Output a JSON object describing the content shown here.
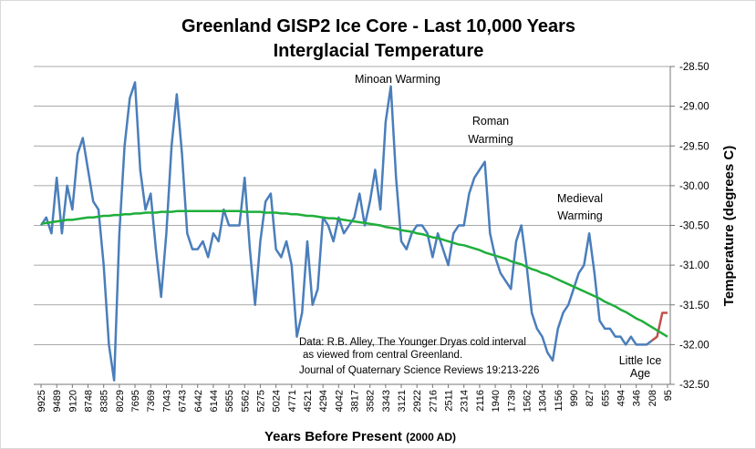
{
  "chart_data": {
    "type": "line",
    "title": [
      "Greenland GISP2 Ice Core - Last 10,000 Years",
      "Interglacial Temperature"
    ],
    "x_label": "Years Before Present",
    "x_label_note": "(2000 AD)",
    "y_label": "Temperature (degrees C)",
    "annotations": [
      [
        "Minoan Warming"
      ],
      [
        "Roman",
        "Warming"
      ],
      [
        "Medieval",
        "Warming"
      ],
      [
        "Little Ice",
        "Age"
      ],
      [
        "Data: R.B. Alley,  The Younger Dryas cold interval",
        "as viewed from central Greenland.",
        "Journal of Quaternary  Science Reviews 19:213-226"
      ]
    ],
    "categories": [
      "9925",
      null,
      null,
      "9489",
      null,
      null,
      "9120",
      null,
      null,
      "8748",
      null,
      null,
      "8385",
      null,
      null,
      "8029",
      null,
      null,
      "7695",
      null,
      null,
      "7369",
      null,
      null,
      "7043",
      null,
      null,
      "6743",
      null,
      null,
      "6442",
      null,
      null,
      "6144",
      null,
      null,
      "5855",
      null,
      null,
      "5562",
      null,
      null,
      "5275",
      null,
      null,
      "5024",
      null,
      null,
      "4771",
      null,
      null,
      "4521",
      null,
      null,
      "4294",
      null,
      null,
      "4042",
      null,
      null,
      "3817",
      null,
      null,
      "3582",
      null,
      null,
      "3343",
      null,
      null,
      "3121",
      null,
      null,
      "2922",
      null,
      null,
      "2716",
      null,
      null,
      "2511",
      null,
      null,
      "2314",
      null,
      null,
      "2116",
      null,
      null,
      "1940",
      null,
      null,
      "1739",
      null,
      null,
      "1562",
      null,
      null,
      "1304",
      null,
      null,
      "1156",
      null,
      null,
      "990",
      null,
      null,
      "827",
      null,
      null,
      "655",
      null,
      null,
      "494",
      null,
      null,
      "346",
      null,
      null,
      "208",
      null,
      null,
      "95"
    ],
    "series": [
      {
        "color": "#4a7ebb",
        "values": [
          -30.5,
          -30.4,
          -30.6,
          -29.9,
          -30.6,
          -30.0,
          -30.3,
          -29.6,
          -29.4,
          -29.8,
          -30.2,
          -30.3,
          -31.0,
          -32.0,
          -32.45,
          -30.6,
          -29.5,
          -28.9,
          -28.7,
          -29.8,
          -30.3,
          -30.1,
          -30.8,
          -31.4,
          -30.6,
          -29.5,
          -28.85,
          -29.6,
          -30.6,
          -30.8,
          -30.8,
          -30.7,
          -30.9,
          -30.6,
          -30.7,
          -30.3,
          -30.5,
          -30.5,
          -30.5,
          -29.9,
          -30.8,
          -31.5,
          -30.7,
          -30.2,
          -30.1,
          -30.8,
          -30.9,
          -30.7,
          -31.0,
          -31.9,
          -31.6,
          -30.7,
          -31.5,
          -31.3,
          -30.4,
          -30.5,
          -30.7,
          -30.4,
          -30.6,
          -30.5,
          -30.4,
          -30.1,
          -30.5,
          -30.2,
          -29.8,
          -30.3,
          -29.2,
          -28.75,
          -29.9,
          -30.7,
          -30.8,
          -30.6,
          -30.5,
          -30.5,
          -30.6,
          -30.9,
          -30.6,
          -30.8,
          -31.0,
          -30.6,
          -30.5,
          -30.5,
          -30.1,
          -29.9,
          -29.8,
          -29.7,
          -30.6,
          -30.9,
          -31.1,
          -31.2,
          -31.3,
          -30.7,
          -30.5,
          -31.0,
          -31.6,
          -31.8,
          -31.9,
          -32.1,
          -32.2,
          -31.8,
          -31.6,
          -31.5,
          -31.3,
          -31.1,
          -31.0,
          -30.6,
          -31.1,
          -31.7,
          -31.8,
          -31.8,
          -31.9,
          -31.9,
          -32.0,
          -31.9,
          -32.0,
          -32.0,
          -32.0,
          -31.95,
          null,
          null,
          null
        ]
      },
      {
        "color": "#c0504d",
        "values": [
          null,
          null,
          null,
          null,
          null,
          null,
          null,
          null,
          null,
          null,
          null,
          null,
          null,
          null,
          null,
          null,
          null,
          null,
          null,
          null,
          null,
          null,
          null,
          null,
          null,
          null,
          null,
          null,
          null,
          null,
          null,
          null,
          null,
          null,
          null,
          null,
          null,
          null,
          null,
          null,
          null,
          null,
          null,
          null,
          null,
          null,
          null,
          null,
          null,
          null,
          null,
          null,
          null,
          null,
          null,
          null,
          null,
          null,
          null,
          null,
          null,
          null,
          null,
          null,
          null,
          null,
          null,
          null,
          null,
          null,
          null,
          null,
          null,
          null,
          null,
          null,
          null,
          null,
          null,
          null,
          null,
          null,
          null,
          null,
          null,
          null,
          null,
          null,
          null,
          null,
          null,
          null,
          null,
          null,
          null,
          null,
          null,
          null,
          null,
          null,
          null,
          null,
          null,
          null,
          null,
          null,
          null,
          null,
          null,
          null,
          null,
          null,
          null,
          null,
          null,
          null,
          null,
          -31.95,
          -31.9,
          -31.6,
          -31.6
        ]
      },
      {
        "color": "#1fae3b",
        "values": [
          -30.48,
          -30.47,
          -30.46,
          -30.45,
          -30.44,
          -30.43,
          -30.43,
          -30.42,
          -30.41,
          -30.4,
          -30.4,
          -30.39,
          -30.38,
          -30.38,
          -30.37,
          -30.37,
          -30.36,
          -30.36,
          -30.35,
          -30.35,
          -30.34,
          -30.34,
          -30.34,
          -30.33,
          -30.33,
          -30.33,
          -30.32,
          -30.32,
          -30.32,
          -30.32,
          -30.32,
          -30.32,
          -30.32,
          -30.32,
          -30.32,
          -30.32,
          -30.32,
          -30.32,
          -30.32,
          -30.33,
          -30.33,
          -30.33,
          -30.33,
          -30.34,
          -30.34,
          -30.34,
          -30.35,
          -30.35,
          -30.36,
          -30.36,
          -30.37,
          -30.38,
          -30.38,
          -30.39,
          -30.4,
          -30.41,
          -30.41,
          -30.42,
          -30.43,
          -30.44,
          -30.45,
          -30.46,
          -30.47,
          -30.48,
          -30.49,
          -30.5,
          -30.52,
          -30.53,
          -30.54,
          -30.56,
          -30.57,
          -30.58,
          -30.6,
          -30.61,
          -30.63,
          -30.65,
          -30.66,
          -30.68,
          -30.7,
          -30.72,
          -30.74,
          -30.75,
          -30.77,
          -30.79,
          -30.81,
          -30.84,
          -30.86,
          -30.88,
          -30.9,
          -30.92,
          -30.95,
          -30.97,
          -30.99,
          -31.02,
          -31.05,
          -31.07,
          -31.1,
          -31.12,
          -31.15,
          -31.18,
          -31.21,
          -31.24,
          -31.27,
          -31.3,
          -31.33,
          -31.36,
          -31.39,
          -31.42,
          -31.46,
          -31.49,
          -31.52,
          -31.56,
          -31.59,
          -31.63,
          -31.67,
          -31.7,
          -31.74,
          -31.78,
          -31.82,
          -31.86,
          -31.9
        ]
      }
    ],
    "ylim": [
      -32.5,
      -28.5
    ],
    "yticks": [
      {
        "value": -28.5,
        "label": "-28.50"
      },
      {
        "value": -29,
        "label": "-29.00"
      },
      {
        "value": -29.5,
        "label": "-29.50"
      },
      {
        "value": -30,
        "label": "-30.00"
      },
      {
        "value": -30.5,
        "label": "-30.50"
      },
      {
        "value": -31,
        "label": "-31.00"
      },
      {
        "value": -31.5,
        "label": "-31.50"
      },
      {
        "value": -32,
        "label": "-32.00"
      },
      {
        "value": -32.5,
        "label": "-32.50"
      }
    ],
    "grid": true
  }
}
